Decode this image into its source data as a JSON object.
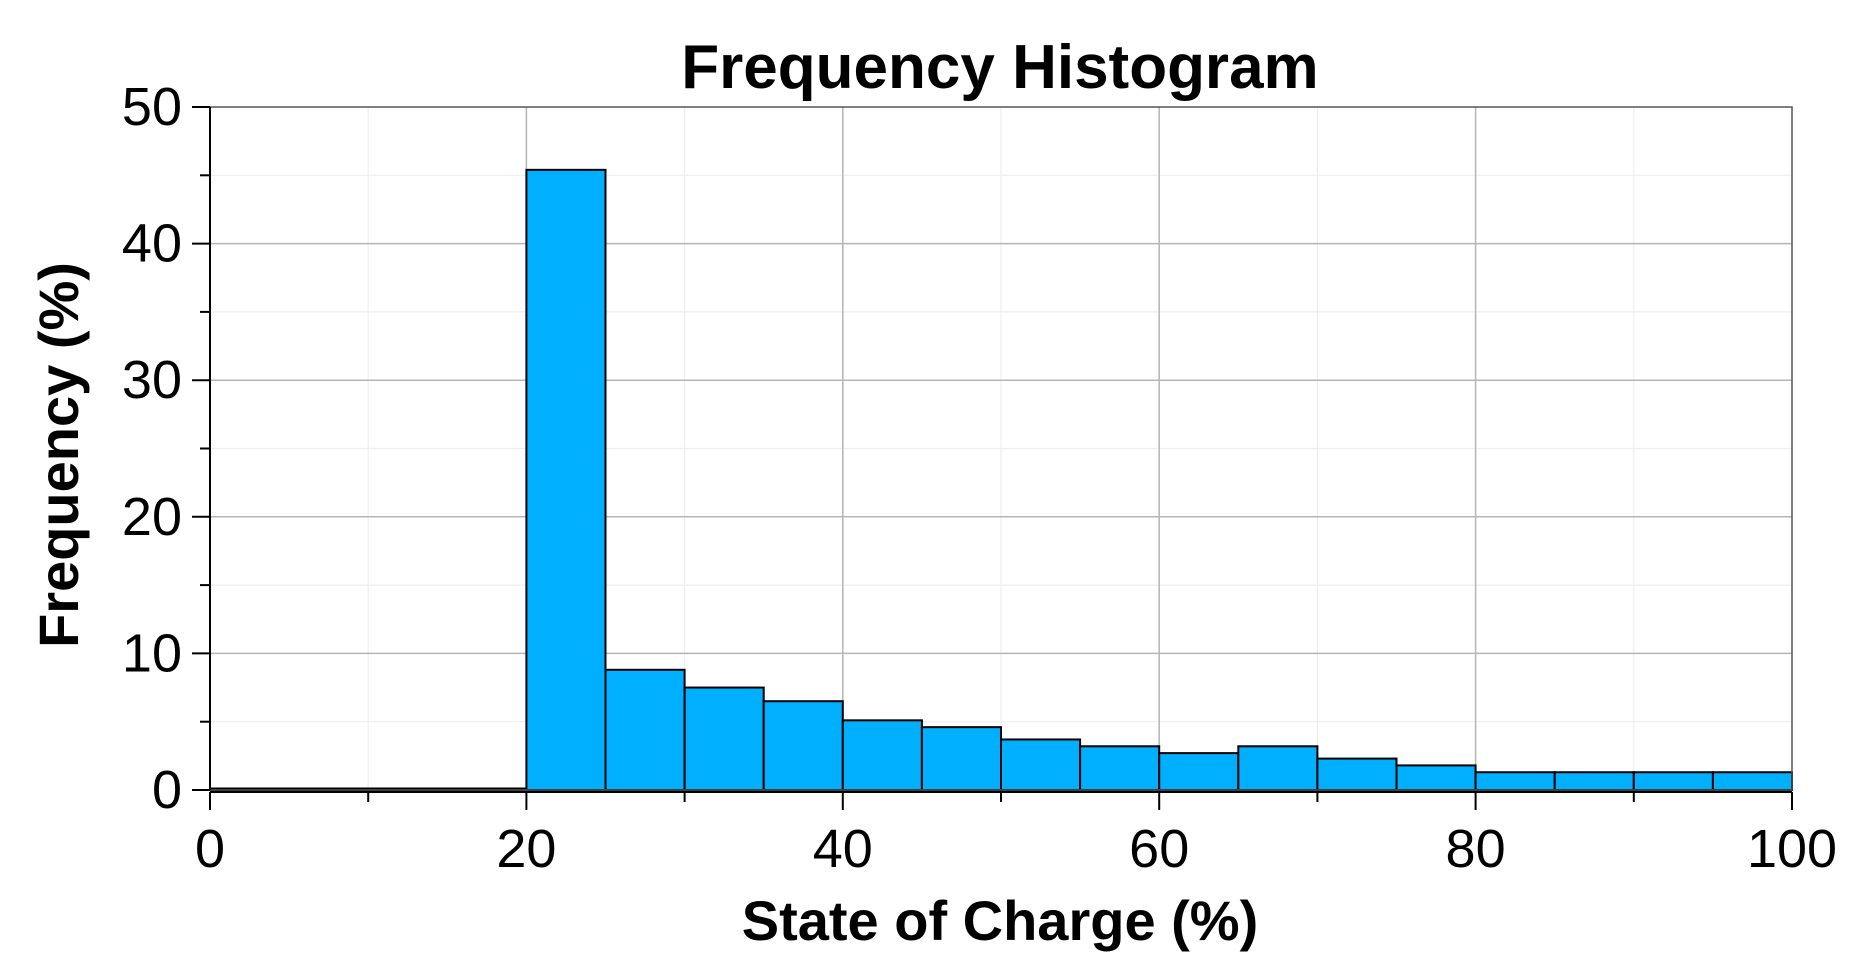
{
  "chart_data": {
    "type": "bar",
    "title": "Frequency Histogram",
    "xlabel": "State of Charge (%)",
    "ylabel": "Frequency (%)",
    "xlim": [
      0,
      100
    ],
    "ylim": [
      0,
      50
    ],
    "x_ticks": [
      0,
      20,
      40,
      60,
      80,
      100
    ],
    "y_ticks": [
      0,
      10,
      20,
      30,
      40,
      50
    ],
    "grid": true,
    "bar_color": "#00B0FF",
    "bins": [
      {
        "start": 0,
        "end": 20,
        "value": 0
      },
      {
        "start": 20,
        "end": 25,
        "value": 45.4
      },
      {
        "start": 25,
        "end": 30,
        "value": 8.8
      },
      {
        "start": 30,
        "end": 35,
        "value": 7.5
      },
      {
        "start": 35,
        "end": 40,
        "value": 6.5
      },
      {
        "start": 40,
        "end": 45,
        "value": 5.1
      },
      {
        "start": 45,
        "end": 50,
        "value": 4.6
      },
      {
        "start": 50,
        "end": 55,
        "value": 3.7
      },
      {
        "start": 55,
        "end": 60,
        "value": 3.2
      },
      {
        "start": 60,
        "end": 65,
        "value": 2.7
      },
      {
        "start": 65,
        "end": 70,
        "value": 3.2
      },
      {
        "start": 70,
        "end": 75,
        "value": 2.3
      },
      {
        "start": 75,
        "end": 80,
        "value": 1.8
      },
      {
        "start": 80,
        "end": 85,
        "value": 1.3
      },
      {
        "start": 85,
        "end": 90,
        "value": 1.3
      },
      {
        "start": 90,
        "end": 95,
        "value": 1.3
      },
      {
        "start": 95,
        "end": 100,
        "value": 1.3
      }
    ]
  }
}
